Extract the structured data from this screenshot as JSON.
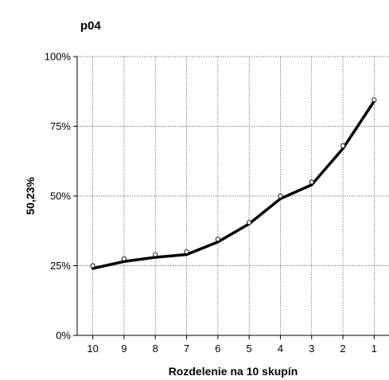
{
  "chart_data": {
    "type": "line",
    "title": "p04",
    "xlabel": "Rozdelenie na 10 skupín",
    "ylabel": "50,23%",
    "categories": [
      "10",
      "9",
      "8",
      "7",
      "6",
      "5",
      "4",
      "3",
      "2",
      "1"
    ],
    "ylim": [
      0,
      100
    ],
    "yticks": [
      0,
      25,
      50,
      75,
      100
    ],
    "ytick_labels": [
      "0%",
      "25%",
      "50%",
      "75%",
      "100%"
    ],
    "grid": "dotted",
    "series": [
      {
        "style": "points",
        "marker": "open-circle",
        "values": [
          25,
          27.5,
          29,
          30,
          34.5,
          40.5,
          50,
          55,
          68,
          84.5
        ]
      },
      {
        "style": "line",
        "color": "#000000",
        "values": [
          24,
          26.5,
          28,
          29,
          33.5,
          40,
          49,
          54,
          67,
          84
        ]
      }
    ]
  }
}
